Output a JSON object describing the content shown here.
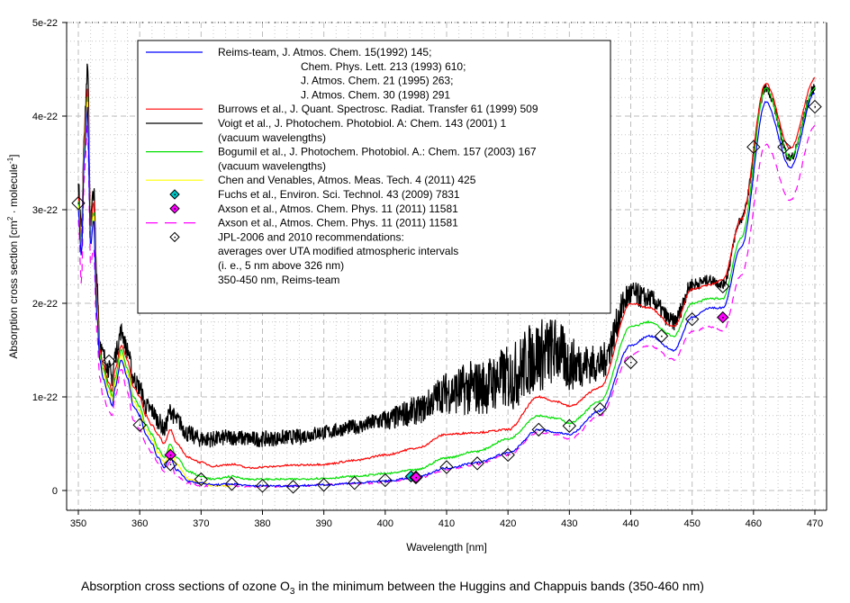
{
  "caption": {
    "prefix": "Absorption cross sections of ozone O",
    "subscript": "3",
    "suffix": " in the minimum between the Huggins and Chappuis bands (350-460 nm)"
  },
  "chart_data": {
    "type": "line",
    "title": "Absorption cross sections of ozone O3 in the minimum between the Huggins and Chappuis bands (350-460 nm)",
    "xlabel": "Wavelength [nm]",
    "ylabel": "Absorption cross section [cm2 · molecule-1]",
    "ylabel_parts": {
      "main": "Absorption cross section [cm",
      "sup1": "2",
      "mid": " · molecule",
      "sup2": "-1",
      "end": "]"
    },
    "xlim": [
      349,
      471
    ],
    "ylim": [
      -0.2,
      5.0
    ],
    "y_unit_multiplier": "1e-22",
    "grid": true,
    "legend_position": "top-center",
    "x_ticks": [
      350,
      360,
      370,
      380,
      390,
      400,
      410,
      420,
      430,
      440,
      450,
      460,
      470
    ],
    "x_tick_labels": [
      "350",
      "360",
      "370",
      "380",
      "390",
      "400",
      "410",
      "420",
      "430",
      "440",
      "450",
      "460",
      "470"
    ],
    "y_ticks": [
      0,
      1,
      2,
      3,
      4,
      5
    ],
    "y_tick_labels": [
      "0",
      "1e-22",
      "2e-22",
      "3e-22",
      "4e-22",
      "5e-22"
    ],
    "series": [
      {
        "name": "Reims-team",
        "legend_lines": [
          "Reims-team, J. Atmos. Chem. 15(1992) 145;",
          "Chem. Phys. Lett. 213 (1993) 610;",
          "J. Atmos. Chem. 21 (1995) 263;",
          "J. Atmos. Chem. 30 (1998) 291"
        ],
        "color": "#0000ff",
        "style": "line",
        "x": [
          350,
          350.5,
          351,
          351.5,
          352,
          352.5,
          353,
          353.5,
          354,
          355,
          355.5,
          356,
          357,
          358,
          359,
          360,
          361,
          362,
          363,
          364,
          365,
          366,
          368,
          370,
          372,
          375,
          378,
          380,
          385,
          390,
          395,
          400,
          405,
          410,
          415,
          420,
          425,
          428,
          430,
          435,
          440,
          443,
          447,
          450,
          453,
          455,
          458,
          462,
          466,
          470
        ],
        "y": [
          3.0,
          2.5,
          3.6,
          4.1,
          2.6,
          2.9,
          1.9,
          1.4,
          1.2,
          1.0,
          0.9,
          1.1,
          1.4,
          1.2,
          0.9,
          0.8,
          0.6,
          0.5,
          0.35,
          0.25,
          0.35,
          0.22,
          0.1,
          0.08,
          0.06,
          0.07,
          0.05,
          0.05,
          0.05,
          0.06,
          0.08,
          0.1,
          0.14,
          0.24,
          0.3,
          0.4,
          0.65,
          0.62,
          0.6,
          0.85,
          1.55,
          1.65,
          1.5,
          1.85,
          1.95,
          1.95,
          2.6,
          4.15,
          3.45,
          4.25
        ]
      },
      {
        "name": "Burrows et al.",
        "legend_lines": [
          "Burrows et al., J. Quant. Spectrosc. Radiat. Transfer 61 (1999) 509"
        ],
        "color": "#ff0000",
        "style": "line",
        "x": [
          350,
          350.5,
          351,
          351.5,
          352,
          352.5,
          353,
          353.5,
          354,
          355,
          355.5,
          356,
          357,
          358,
          359,
          360,
          361,
          362,
          363,
          364,
          365,
          366,
          368,
          370,
          372,
          375,
          378,
          380,
          385,
          390,
          395,
          400,
          405,
          410,
          415,
          420,
          425,
          428,
          430,
          435,
          440,
          443,
          447,
          450,
          453,
          455,
          458,
          462,
          466,
          470
        ],
        "y": [
          3.15,
          2.7,
          3.8,
          4.3,
          2.8,
          3.1,
          2.1,
          1.5,
          1.35,
          1.15,
          1.05,
          1.3,
          1.55,
          1.4,
          1.1,
          1.0,
          0.8,
          0.7,
          0.6,
          0.5,
          0.65,
          0.5,
          0.35,
          0.3,
          0.26,
          0.28,
          0.24,
          0.25,
          0.27,
          0.28,
          0.32,
          0.38,
          0.45,
          0.6,
          0.62,
          0.65,
          1.0,
          0.95,
          0.9,
          1.1,
          2.0,
          1.95,
          1.75,
          2.15,
          2.2,
          2.25,
          2.9,
          4.35,
          3.65,
          4.4
        ]
      },
      {
        "name": "Voigt et al.",
        "legend_lines": [
          "Voigt et al., J. Photochem. Photobiol. A: Chem. 143 (2001) 1",
          "(vacuum wavelengths)"
        ],
        "color": "#000000",
        "style": "noisy",
        "x": [
          350,
          350.5,
          351,
          351.5,
          352,
          352.5,
          353,
          353.5,
          354,
          355,
          355.5,
          356,
          357,
          358,
          359,
          360,
          361,
          362,
          363,
          364,
          365,
          366,
          368,
          370,
          372,
          375,
          378,
          380,
          385,
          390,
          395,
          400,
          405,
          410,
          415,
          420,
          425,
          428,
          430,
          435,
          440,
          443,
          447,
          450,
          453,
          455,
          458,
          462,
          466,
          470
        ],
        "y": [
          3.25,
          2.8,
          3.9,
          4.5,
          2.9,
          3.2,
          2.3,
          1.6,
          1.45,
          1.3,
          1.2,
          1.45,
          1.7,
          1.5,
          1.2,
          1.1,
          0.9,
          0.85,
          0.75,
          0.65,
          0.85,
          0.75,
          0.6,
          0.55,
          0.55,
          0.57,
          0.55,
          0.55,
          0.57,
          0.62,
          0.68,
          0.75,
          0.85,
          1.05,
          1.1,
          1.2,
          1.45,
          1.5,
          1.35,
          1.35,
          2.1,
          2.05,
          1.8,
          2.2,
          2.25,
          2.2,
          2.9,
          4.3,
          3.55,
          4.3
        ],
        "noise_amplitude": [
          [
            350,
            0.1
          ],
          [
            395,
            0.08
          ],
          [
            405,
            0.15
          ],
          [
            415,
            0.3
          ],
          [
            425,
            0.4
          ],
          [
            435,
            0.2
          ],
          [
            445,
            0.1
          ],
          [
            455,
            0.05
          ],
          [
            470,
            0.05
          ]
        ]
      },
      {
        "name": "Bogumil et al.",
        "legend_lines": [
          "Bogumil et al., J. Photochem. Photobiol. A.: Chem. 157 (2003) 167",
          "(vacuum wavelengths)"
        ],
        "color": "#00e000",
        "style": "line",
        "x": [
          350,
          350.5,
          351,
          351.5,
          352,
          352.5,
          353,
          353.5,
          354,
          355,
          355.5,
          356,
          357,
          358,
          359,
          360,
          361,
          362,
          363,
          364,
          365,
          366,
          368,
          370,
          372,
          375,
          378,
          380,
          385,
          390,
          395,
          400,
          405,
          410,
          415,
          420,
          425,
          428,
          430,
          435,
          440,
          443,
          447,
          450,
          453,
          455,
          458,
          462,
          466,
          470
        ],
        "y": [
          3.1,
          2.6,
          3.7,
          4.2,
          2.7,
          3.0,
          2.0,
          1.45,
          1.3,
          1.1,
          1.0,
          1.2,
          1.5,
          1.3,
          1.0,
          0.9,
          0.7,
          0.6,
          0.45,
          0.35,
          0.5,
          0.35,
          0.2,
          0.15,
          0.12,
          0.15,
          0.12,
          0.12,
          0.12,
          0.13,
          0.15,
          0.18,
          0.22,
          0.35,
          0.42,
          0.55,
          0.8,
          0.77,
          0.72,
          0.95,
          1.75,
          1.8,
          1.65,
          2.0,
          2.05,
          2.05,
          2.7,
          4.3,
          3.55,
          4.3
        ]
      },
      {
        "name": "Chen and Venables",
        "legend_lines": [
          "Chen and Venables, Atmos. Meas. Tech. 4 (2011) 425"
        ],
        "color": "#ffff00",
        "style": "line",
        "x": [
          350,
          350.5,
          351,
          351.5,
          352,
          352.5,
          353,
          353.5,
          354,
          355,
          355.5,
          356,
          357,
          358,
          359,
          360,
          361,
          362,
          363,
          364,
          365,
          366,
          368,
          370,
          372,
          375
        ],
        "y": [
          3.05,
          2.55,
          3.65,
          4.15,
          2.65,
          2.95,
          1.95,
          1.4,
          1.25,
          1.05,
          0.95,
          1.15,
          1.45,
          1.25,
          0.95,
          0.85,
          0.65,
          0.55,
          0.4,
          0.3,
          0.45,
          0.28,
          0.12,
          0.08,
          0.05,
          0.05
        ]
      },
      {
        "name": "Fuchs et al.",
        "legend_lines": [
          "Fuchs et al., Environ. Sci. Technol. 43 (2009) 7831"
        ],
        "color": "#00c8c8",
        "style": "marker-filled",
        "x": [
          404.2
        ],
        "y": [
          0.15
        ]
      },
      {
        "name": "Axson et al. (points)",
        "legend_lines": [
          "Axson et al., Atmos. Chem. Phys. 11 (2011) 11581"
        ],
        "color": "#ff00ff",
        "style": "marker-filled",
        "x": [
          365,
          405,
          455
        ],
        "y": [
          0.38,
          0.14,
          1.85
        ]
      },
      {
        "name": "Axson et al. (spectrum)",
        "legend_lines": [
          "Axson et al., Atmos. Chem. Phys. 11 (2011) 11581"
        ],
        "color": "#ff00ff",
        "style": "dashed",
        "x": [
          350,
          350.5,
          351,
          351.5,
          352,
          352.5,
          353,
          353.5,
          354,
          355,
          355.5,
          356,
          357,
          358,
          359,
          360,
          361,
          362,
          363,
          364,
          365,
          366,
          368,
          370,
          372,
          375,
          378,
          380,
          385,
          390,
          395,
          400,
          405,
          410,
          415,
          420,
          425,
          428,
          430,
          435,
          440,
          443,
          447,
          450,
          453,
          455,
          458,
          462,
          466,
          470
        ],
        "y": [
          2.9,
          2.2,
          3.4,
          3.9,
          2.4,
          2.6,
          1.7,
          1.2,
          1.0,
          0.85,
          0.8,
          1.0,
          1.3,
          1.05,
          0.75,
          0.65,
          0.5,
          0.4,
          0.3,
          0.2,
          0.3,
          0.15,
          0.08,
          0.05,
          0.05,
          0.05,
          0.04,
          0.04,
          0.05,
          0.06,
          0.07,
          0.09,
          0.13,
          0.22,
          0.28,
          0.38,
          0.62,
          0.6,
          0.55,
          0.8,
          1.45,
          1.55,
          1.4,
          1.7,
          1.75,
          1.7,
          2.3,
          3.7,
          3.1,
          3.9
        ]
      },
      {
        "name": "JPL-2006 and 2010 recommendations",
        "legend_lines": [
          "JPL-2006 and 2010 recommendations:",
          "averages over UTA modified atmospheric intervals",
          "(i. e., 5 nm above 326 nm)",
          "350-450 nm, Reims-team"
        ],
        "color": "#000000",
        "style": "marker-open",
        "x": [
          350,
          355,
          360,
          365,
          370,
          375,
          380,
          385,
          390,
          395,
          400,
          405,
          410,
          415,
          420,
          425,
          430,
          435,
          440,
          445,
          450,
          455,
          460,
          465,
          470
        ],
        "y": [
          3.07,
          1.38,
          0.7,
          0.28,
          0.12,
          0.07,
          0.05,
          0.04,
          0.06,
          0.08,
          0.11,
          0.14,
          0.25,
          0.29,
          0.38,
          0.65,
          0.69,
          0.87,
          1.37,
          1.65,
          1.83,
          2.18,
          3.67,
          3.67,
          4.1
        ]
      }
    ]
  }
}
